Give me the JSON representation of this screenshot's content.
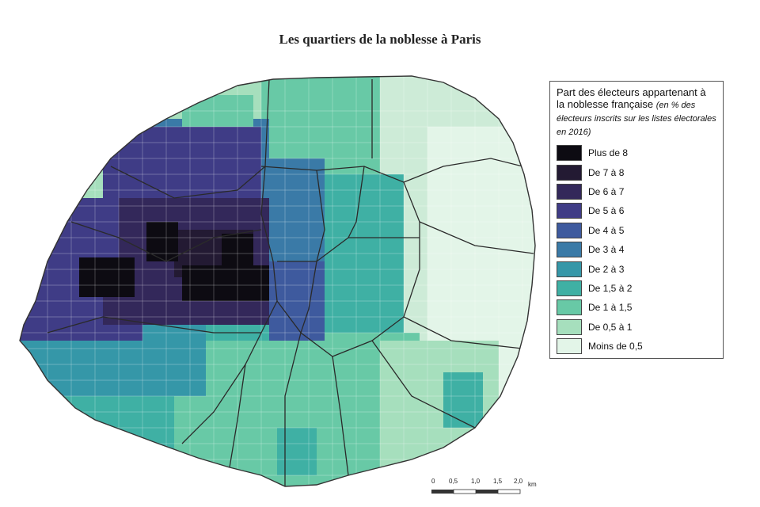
{
  "title": "Les quartiers de la noblesse à Paris",
  "legend": {
    "title": "Part des électeurs appartenant à la noblesse française",
    "subtitle": "(en % des électeurs inscrits sur les listes électorales en 2016)",
    "classes": [
      {
        "label": "Plus de 8",
        "color": "#0d0b12"
      },
      {
        "label": "De 7 à 8",
        "color": "#231a33"
      },
      {
        "label": "De 6 à 7",
        "color": "#33285a"
      },
      {
        "label": "De 5 à 6",
        "color": "#3f3c86"
      },
      {
        "label": "De 4 à 5",
        "color": "#3e5a9e"
      },
      {
        "label": "De 3 à 4",
        "color": "#3a7aa7"
      },
      {
        "label": "De 2 à 3",
        "color": "#3597a8"
      },
      {
        "label": "De 1,5 à 2",
        "color": "#3fb0a4"
      },
      {
        "label": "De 1 à 1,5",
        "color": "#68c9a6"
      },
      {
        "label": "De 0,5 à 1",
        "color": "#a6dfbd"
      },
      {
        "label": "Moins de 0,5",
        "color": "#e3f5e8"
      }
    ]
  },
  "scale": {
    "ticks": [
      "0",
      "0,5",
      "1,0",
      "1,5",
      "2,0"
    ],
    "unit": "km"
  }
}
